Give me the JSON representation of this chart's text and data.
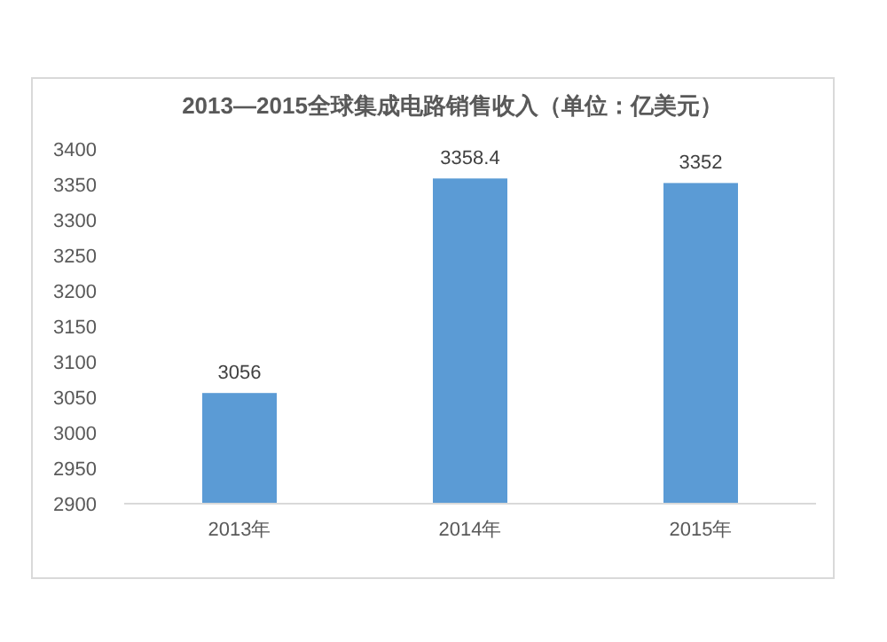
{
  "chart_data": {
    "type": "bar",
    "title": "2013—2015全球集成电路销售收入（单位：亿美元）",
    "categories": [
      "2013年",
      "2014年",
      "2015年"
    ],
    "values": [
      3056,
      3358.4,
      3352
    ],
    "color": "#5b9bd5",
    "ylim": [
      2900,
      3400
    ],
    "yticks": [
      2900,
      2950,
      3000,
      3050,
      3100,
      3150,
      3200,
      3250,
      3300,
      3350,
      3400
    ],
    "data_labels": true,
    "grid": false
  }
}
